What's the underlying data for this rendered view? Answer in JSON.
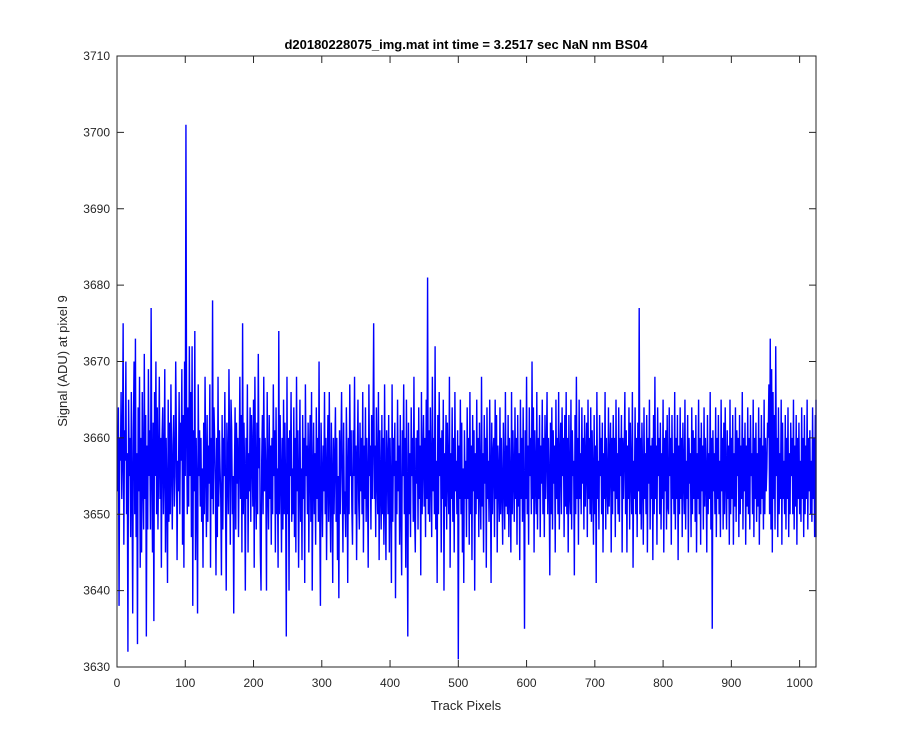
{
  "chart_data": {
    "type": "line",
    "title": "d20180228075_img.mat int time = 3.2517 sec  NaN nm BS04",
    "xlabel": "Track Pixels",
    "ylabel": "Signal (ADU) at pixel 9",
    "xlim": [
      0,
      1024
    ],
    "ylim": [
      3630,
      3710
    ],
    "xticks": [
      0,
      100,
      200,
      300,
      400,
      500,
      600,
      700,
      800,
      900,
      1000
    ],
    "yticks": [
      3630,
      3640,
      3650,
      3660,
      3670,
      3680,
      3690,
      3700,
      3710
    ],
    "grid": false,
    "series": [
      {
        "color": "#0000ff",
        "x_start": 1,
        "x_step": 1,
        "values": [
          3653,
          3664,
          3638,
          3660,
          3657,
          3666,
          3652,
          3658,
          3675,
          3646,
          3661,
          3657,
          3670,
          3650,
          3658,
          3632,
          3665,
          3655,
          3660,
          3647,
          3666,
          3654,
          3637,
          3661,
          3670,
          3650,
          3673,
          3647,
          3658,
          3633,
          3664,
          3653,
          3668,
          3643,
          3660,
          3645,
          3666,
          3655,
          3648,
          3671,
          3652,
          3663,
          3634,
          3659,
          3648,
          3669,
          3655,
          3661,
          3648,
          3677,
          3656,
          3645,
          3662,
          3636,
          3666,
          3655,
          3670,
          3650,
          3664,
          3648,
          3657,
          3668,
          3652,
          3660,
          3643,
          3660,
          3664,
          3650,
          3656,
          3669,
          3645,
          3660,
          3653,
          3641,
          3665,
          3649,
          3662,
          3650,
          3667,
          3656,
          3648,
          3659,
          3663,
          3651,
          3655,
          3670,
          3660,
          3644,
          3657,
          3653,
          3666,
          3650,
          3662,
          3657,
          3669,
          3646,
          3663,
          3643,
          3670,
          3655,
          3701,
          3660,
          3650,
          3664,
          3651,
          3672,
          3655,
          3666,
          3647,
          3672,
          3638,
          3661,
          3653,
          3674,
          3644,
          3660,
          3653,
          3637,
          3667,
          3655,
          3661,
          3651,
          3660,
          3649,
          3656,
          3643,
          3662,
          3650,
          3668,
          3656,
          3647,
          3663,
          3649,
          3659,
          3654,
          3667,
          3643,
          3660,
          3652,
          3678,
          3650,
          3664,
          3660,
          3654,
          3642,
          3660,
          3647,
          3668,
          3651,
          3661,
          3656,
          3652,
          3642,
          3663,
          3648,
          3660,
          3655,
          3666,
          3651,
          3640,
          3662,
          3656,
          3650,
          3669,
          3658,
          3646,
          3665,
          3661,
          3650,
          3655,
          3637,
          3655,
          3664,
          3648,
          3662,
          3654,
          3660,
          3647,
          3657,
          3668,
          3652,
          3663,
          3645,
          3675,
          3650,
          3662,
          3655,
          3640,
          3660,
          3652,
          3667,
          3645,
          3658,
          3653,
          3664,
          3649,
          3663,
          3658,
          3651,
          3665,
          3643,
          3668,
          3655,
          3648,
          3662,
          3650,
          3671,
          3656,
          3660,
          3645,
          3640,
          3657,
          3663,
          3650,
          3668,
          3653,
          3660,
          3655,
          3640,
          3666,
          3654,
          3648,
          3663,
          3652,
          3659,
          3646,
          3660,
          3650,
          3667,
          3655,
          3661,
          3645,
          3664,
          3650,
          3656,
          3643,
          3674,
          3650,
          3663,
          3655,
          3645,
          3660,
          3648,
          3665,
          3650,
          3662,
          3653,
          3634,
          3668,
          3650,
          3660,
          3640,
          3661,
          3655,
          3666,
          3649,
          3656,
          3650,
          3664,
          3647,
          3660,
          3645,
          3668,
          3653,
          3661,
          3643,
          3654,
          3665,
          3649,
          3656,
          3644,
          3663,
          3652,
          3660,
          3641,
          3667,
          3655,
          3659,
          3650,
          3662,
          3645,
          3657,
          3663,
          3649,
          3666,
          3640,
          3655,
          3662,
          3650,
          3658,
          3646,
          3664,
          3652,
          3660,
          3649,
          3670,
          3650,
          3638,
          3662,
          3655,
          3647,
          3659,
          3653,
          3666,
          3650,
          3660,
          3644,
          3656,
          3663,
          3649,
          3666,
          3653,
          3645,
          3662,
          3655,
          3641,
          3660,
          3650,
          3657,
          3664,
          3649,
          3660,
          3644,
          3655,
          3639,
          3661,
          3650,
          3658,
          3666,
          3654,
          3645,
          3662,
          3650,
          3653,
          3647,
          3664,
          3656,
          3641,
          3660,
          3650,
          3667,
          3655,
          3661,
          3651,
          3646,
          3661,
          3655,
          3668,
          3650,
          3659,
          3644,
          3657,
          3665,
          3652,
          3648,
          3662,
          3653,
          3660,
          3650,
          3666,
          3645,
          3659,
          3652,
          3664,
          3649,
          3660,
          3654,
          3643,
          3667,
          3655,
          3659,
          3648,
          3663,
          3652,
          3660,
          3675,
          3652,
          3659,
          3647,
          3664,
          3655,
          3650,
          3666,
          3644,
          3661,
          3654,
          3648,
          3663,
          3650,
          3660,
          3646,
          3667,
          3652,
          3644,
          3661,
          3657,
          3650,
          3663,
          3645,
          3660,
          3653,
          3641,
          3667,
          3649,
          3660,
          3655,
          3662,
          3639,
          3657,
          3650,
          3665,
          3653,
          3659,
          3646,
          3663,
          3650,
          3642,
          3661,
          3655,
          3667,
          3650,
          3660,
          3643,
          3665,
          3652,
          3634,
          3662,
          3650,
          3658,
          3647,
          3664,
          3655,
          3660,
          3649,
          3668,
          3650,
          3645,
          3660,
          3654,
          3661,
          3648,
          3664,
          3652,
          3659,
          3642,
          3666,
          3650,
          3657,
          3663,
          3651,
          3660,
          3647,
          3665,
          3652,
          3681,
          3650,
          3661,
          3649,
          3664,
          3655,
          3647,
          3668,
          3653,
          3660,
          3650,
          3672,
          3648,
          3657,
          3641,
          3663,
          3650,
          3666,
          3655,
          3660,
          3645,
          3661,
          3652,
          3665,
          3640,
          3658,
          3651,
          3663,
          3648,
          3662,
          3655,
          3650,
          3668,
          3643,
          3658,
          3652,
          3664,
          3649,
          3660,
          3645,
          3666,
          3653,
          3657,
          3650,
          3661,
          3631,
          3659,
          3652,
          3665,
          3650,
          3662,
          3645,
          3656,
          3641,
          3661,
          3652,
          3657,
          3647,
          3664,
          3652,
          3660,
          3646,
          3666,
          3650,
          3659,
          3644,
          3663,
          3653,
          3661,
          3640,
          3658,
          3650,
          3665,
          3652,
          3660,
          3647,
          3662,
          3654,
          3648,
          3668,
          3651,
          3658,
          3645,
          3663,
          3654,
          3660,
          3643,
          3664,
          3652,
          3657,
          3649,
          3665,
          3655,
          3641,
          3662,
          3650,
          3658,
          3660,
          3647,
          3665,
          3652,
          3663,
          3645,
          3659,
          3655,
          3649,
          3664,
          3650,
          3660,
          3653,
          3646,
          3662,
          3655,
          3648,
          3666,
          3651,
          3659,
          3650,
          3663,
          3647,
          3660,
          3654,
          3645,
          3666,
          3650,
          3661,
          3655,
          3649,
          3664,
          3652,
          3660,
          3646,
          3663,
          3651,
          3658,
          3644,
          3665,
          3652,
          3660,
          3649,
          3664,
          3653,
          3635,
          3661,
          3652,
          3668,
          3650,
          3659,
          3646,
          3664,
          3655,
          3660,
          3650,
          3670,
          3652,
          3664,
          3645,
          3661,
          3655,
          3650,
          3666,
          3648,
          3660,
          3652,
          3663,
          3647,
          3659,
          3654,
          3665,
          3650,
          3660,
          3647,
          3663,
          3652,
          3658,
          3666,
          3650,
          3660,
          3655,
          3642,
          3662,
          3650,
          3664,
          3648,
          3661,
          3654,
          3659,
          3645,
          3665,
          3652,
          3660,
          3650,
          3666,
          3648,
          3657,
          3662,
          3650,
          3664,
          3655,
          3660,
          3647,
          3663,
          3651,
          3666,
          3650,
          3660,
          3645,
          3663,
          3653,
          3650,
          3665,
          3648,
          3661,
          3655,
          3657,
          3642,
          3663,
          3650,
          3668,
          3652,
          3660,
          3646,
          3665,
          3652,
          3658,
          3650,
          3664,
          3654,
          3660,
          3648,
          3663,
          3651,
          3657,
          3662,
          3647,
          3665,
          3652,
          3660,
          3650,
          3664,
          3649,
          3661,
          3655,
          3646,
          3663,
          3650,
          3659,
          3641,
          3666,
          3652,
          3657,
          3648,
          3663,
          3655,
          3660,
          3650,
          3662,
          3645,
          3658,
          3652,
          3666,
          3648,
          3660,
          3654,
          3650,
          3664,
          3651,
          3657,
          3662,
          3645,
          3660,
          3650,
          3663,
          3653,
          3660,
          3647,
          3665,
          3652,
          3658,
          3650,
          3664,
          3649,
          3660,
          3655,
          3663,
          3645,
          3660,
          3652,
          3658,
          3666,
          3650,
          3661,
          3645,
          3659,
          3652,
          3664,
          3648,
          3662,
          3655,
          3650,
          3666,
          3643,
          3657,
          3652,
          3664,
          3650,
          3660,
          3647,
          3662,
          3653,
          3677,
          3650,
          3660,
          3648,
          3662,
          3655,
          3646,
          3664,
          3652,
          3658,
          3650,
          3663,
          3645,
          3660,
          3654,
          3665,
          3648,
          3659,
          3652,
          3660,
          3644,
          3663,
          3650,
          3668,
          3652,
          3659,
          3646,
          3664,
          3655,
          3660,
          3650,
          3662,
          3648,
          3658,
          3652,
          3665,
          3645,
          3660,
          3653,
          3661,
          3648,
          3663,
          3651,
          3650,
          3664,
          3655,
          3660,
          3646,
          3663,
          3652,
          3658,
          3650,
          3666,
          3648,
          3660,
          3652,
          3663,
          3644,
          3659,
          3650,
          3664,
          3652,
          3660,
          3647,
          3662,
          3655,
          3650,
          3665,
          3648,
          3657,
          3652,
          3663,
          3645,
          3660,
          3654,
          3658,
          3647,
          3664,
          3650,
          3661,
          3652,
          3660,
          3649,
          3663,
          3645,
          3658,
          3652,
          3665,
          3650,
          3660,
          3646,
          3662,
          3653,
          3659,
          3648,
          3664,
          3651,
          3660,
          3655,
          3645,
          3663,
          3650,
          3658,
          3652,
          3666,
          3648,
          3660,
          3635,
          3661,
          3653,
          3658,
          3650,
          3664,
          3647,
          3660,
          3652,
          3663,
          3650,
          3657,
          3647,
          3665,
          3653,
          3660,
          3648,
          3662,
          3650,
          3664,
          3655,
          3648,
          3661,
          3652,
          3659,
          3646,
          3665,
          3650,
          3660,
          3652,
          3663,
          3646,
          3658,
          3651,
          3664,
          3649,
          3661,
          3655,
          3660,
          3647,
          3663,
          3650,
          3659,
          3652,
          3666,
          3648,
          3660,
          3653,
          3662,
          3646,
          3659,
          3651,
          3664,
          3650,
          3660,
          3648,
          3663,
          3655,
          3658,
          3650,
          3665,
          3647,
          3660,
          3652,
          3662,
          3649,
          3658,
          3651,
          3664,
          3646,
          3660,
          3650,
          3663,
          3652,
          3659,
          3648,
          3665,
          3650,
          3660,
          3653,
          3656,
          3662,
          3660,
          3667,
          3650,
          3673,
          3648,
          3669,
          3645,
          3666,
          3652,
          3663,
          3648,
          3672,
          3655,
          3660,
          3647,
          3664,
          3650,
          3658,
          3652,
          3665,
          3646,
          3662,
          3652,
          3657,
          3650,
          3663,
          3648,
          3660,
          3652,
          3664,
          3647,
          3658,
          3650,
          3662,
          3655,
          3660,
          3650,
          3665,
          3648,
          3659,
          3651,
          3663,
          3646,
          3660,
          3652,
          3662,
          3650,
          3657,
          3649,
          3664,
          3652,
          3660,
          3647,
          3663,
          3650,
          3659,
          3652,
          3665,
          3648,
          3660,
          3653,
          3661,
          3650,
          3657,
          3649,
          3664,
          3652,
          3660,
          3647,
          3663,
          3650,
          3658,
          3652,
          3665,
          3648,
          3660,
          3653,
          3661,
          3650,
          3657,
          3649,
          3664,
          3652,
          3660,
          3647,
          3663,
          3650,
          3658,
          3652,
          3665,
          3648,
          3660,
          3653,
          3661,
          3650,
          3657,
          3649,
          3664,
          3652,
          3660,
          3647,
          3663,
          3650,
          3658,
          3652,
          3665,
          3648,
          3660,
          3653,
          3661,
          3650,
          3657,
          3649,
          3664,
          3652,
          3660,
          3647,
          3663,
          3650,
          3658,
          3652,
          3665,
          3648,
          3660,
          3653,
          3661,
          3650,
          3657,
          3649,
          3664,
          3652,
          3660,
          3647,
          3663,
          3650,
          3658,
          3652,
          3665,
          3648,
          3660,
          3653,
          3661,
          3650,
          3657,
          3649,
          3664,
          3652,
          3660,
          3647,
          3663,
          3650,
          3658,
          3652,
          3665,
          3648,
          3660,
          3653,
          3661,
          3650,
          3657,
          3649,
          3664,
          3652,
          3660,
          3647,
          3663,
          3650,
          3658,
          3652,
          3665,
          3648,
          3660,
          3653,
          3661,
          3650,
          3657,
          3649,
          3664,
          3652,
          3660,
          3647,
          3663,
          3650,
          3658,
          3652,
          3665,
          3648,
          3660,
          3653,
          3661,
          3650
        ]
      }
    ]
  }
}
